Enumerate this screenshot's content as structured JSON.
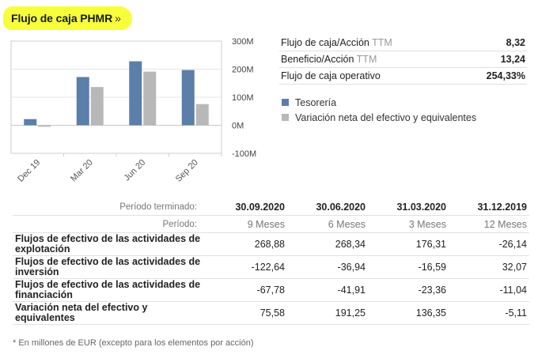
{
  "header": {
    "title": "Flujo de caja PHMR",
    "raquo": "»"
  },
  "metrics": [
    {
      "label": "Flujo de caja/Acción",
      "suffix": "TTM",
      "value": "8,32"
    },
    {
      "label": "Beneficio/Acción",
      "suffix": "TTM",
      "value": "13,24"
    },
    {
      "label": "Flujo de caja operativo",
      "suffix": "",
      "value": "254,33%"
    }
  ],
  "legend": [
    {
      "label": "Tesorería",
      "color": "#5b7fa8"
    },
    {
      "label": "Variación neta del efectivo y equivalentes",
      "color": "#b8b8b8"
    }
  ],
  "chart_data": {
    "type": "bar",
    "categories": [
      "Dec 19",
      "Mar 20",
      "Jun 20",
      "Sep 20"
    ],
    "series": [
      {
        "name": "Tesorería",
        "color": "#5b7fa8",
        "values": [
          22,
          172,
          228,
          197
        ]
      },
      {
        "name": "Variación neta del efectivo y equivalentes",
        "color": "#b8b8b8",
        "values": [
          -5.11,
          136.35,
          191.25,
          75.58
        ]
      }
    ],
    "yticks": [
      "300M",
      "200M",
      "100M",
      "0M",
      "-100M"
    ],
    "ytick_values": [
      300,
      200,
      100,
      0,
      -100
    ],
    "ylim": [
      -100,
      300
    ]
  },
  "table": {
    "period_label": "Período terminado:",
    "dates": [
      "30.09.2020",
      "30.06.2020",
      "31.03.2020",
      "31.12.2019"
    ],
    "periodo_label": "Período:",
    "periods": [
      "9 Meses",
      "6 Meses",
      "3 Meses",
      "12 Meses"
    ],
    "rows": [
      {
        "label": "Flujos de efectivo de las actividades de explotación",
        "values": [
          "268,88",
          "268,34",
          "176,31",
          "-26,14"
        ]
      },
      {
        "label": "Flujos de efectivo de las actividades de inversión",
        "values": [
          "-122,64",
          "-36,94",
          "-16,59",
          "32,07"
        ]
      },
      {
        "label": "Flujos de efectivo de las actividades de financiación",
        "values": [
          "-67,78",
          "-41,91",
          "-23,36",
          "-11,04"
        ]
      },
      {
        "label": "Variación neta del efectivo y equivalentes",
        "values": [
          "75,58",
          "191,25",
          "136,35",
          "-5,11"
        ]
      }
    ]
  },
  "footnote": "* En millones de EUR (excepto para los elementos por acción)"
}
